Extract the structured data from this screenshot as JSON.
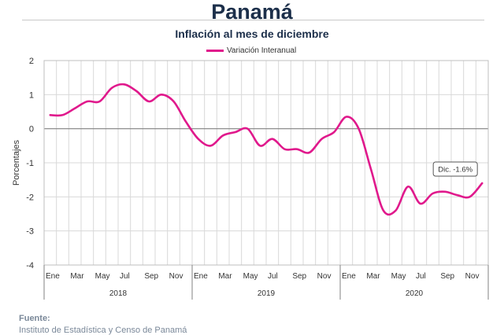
{
  "header": {
    "title": "Panamá",
    "subtitle": "Inflación al mes de diciembre"
  },
  "source": {
    "label": "Fuente:",
    "text": "Instituto de Estadística y Censo de Panamá"
  },
  "chart_data": {
    "type": "line",
    "ylabel": "Porcentajes",
    "ylim": [
      -4,
      2
    ],
    "yticks": [
      2,
      1,
      0,
      -1,
      -2,
      -3,
      -4
    ],
    "ytick_labels": [
      "2",
      "1",
      "0",
      "-1",
      "-2",
      "-3",
      "-4"
    ],
    "grid": true,
    "legend_position": "top-center",
    "color": "#e0198c",
    "month_labels": [
      "Ene",
      "Mar",
      "May",
      "Jul",
      "Sep",
      "Nov",
      "Ene",
      "Mar",
      "May",
      "Jul",
      "Sep",
      "Nov",
      "Ene",
      "Mar",
      "May",
      "Jul",
      "Sep",
      "Nov"
    ],
    "years": [
      "2018",
      "2019",
      "2020"
    ],
    "series": [
      {
        "name": "Variación Interanual",
        "x": [
          "2018-01",
          "2018-02",
          "2018-03",
          "2018-04",
          "2018-05",
          "2018-06",
          "2018-07",
          "2018-08",
          "2018-09",
          "2018-10",
          "2018-11",
          "2018-12",
          "2019-01",
          "2019-02",
          "2019-03",
          "2019-04",
          "2019-05",
          "2019-06",
          "2019-07",
          "2019-08",
          "2019-09",
          "2019-10",
          "2019-11",
          "2019-12",
          "2020-01",
          "2020-02",
          "2020-03",
          "2020-04",
          "2020-05",
          "2020-06",
          "2020-07",
          "2020-08",
          "2020-09",
          "2020-10",
          "2020-11",
          "2020-12"
        ],
        "values": [
          0.4,
          0.4,
          0.6,
          0.8,
          0.8,
          1.2,
          1.3,
          1.1,
          0.8,
          1.0,
          0.8,
          0.2,
          -0.3,
          -0.5,
          -0.2,
          -0.1,
          0.0,
          -0.5,
          -0.3,
          -0.6,
          -0.6,
          -0.7,
          -0.3,
          -0.1,
          0.35,
          0.0,
          -1.2,
          -2.4,
          -2.4,
          -1.7,
          -2.2,
          -1.9,
          -1.85,
          -1.95,
          -2.0,
          -1.6
        ]
      }
    ],
    "annotation": {
      "text": "Dic. -1.6%",
      "x": "2020-12",
      "y": -1.6
    }
  }
}
